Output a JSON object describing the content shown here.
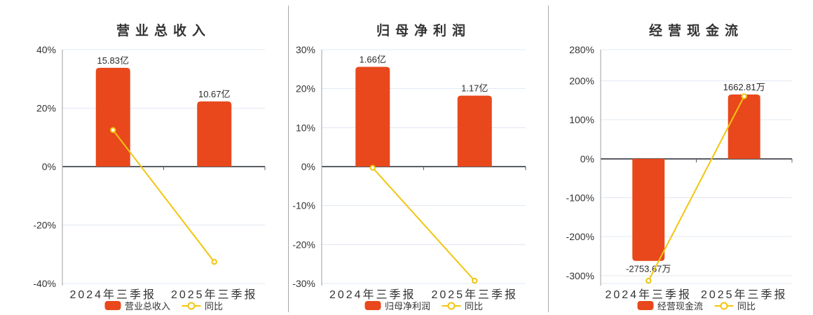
{
  "page": {
    "background": "#ffffff",
    "divider_color": "#a8a8a8"
  },
  "colors": {
    "bar": "#e8481c",
    "line": "#f2c50f",
    "marker_fill": "#ffffff",
    "grid": "#e2e8f2",
    "zero_axis": "#595c63",
    "axis": "#9aa0a6",
    "text": "#333333",
    "value_label": "#2b2b2b"
  },
  "chart_data": [
    {
      "type": "bar+line",
      "title": "营业总收入",
      "categories": [
        "2024年三季报",
        "2025年三季报"
      ],
      "series": [
        {
          "name": "营业总收入",
          "type": "bar",
          "unit": "亿",
          "values": [
            15.83,
            10.67
          ],
          "labels": [
            "15.83亿",
            "10.67亿"
          ],
          "display_axis_pct": [
            33.8,
            22.3
          ]
        },
        {
          "name": "同比",
          "type": "line",
          "values_pct": [
            12.5,
            -32.6
          ]
        }
      ],
      "xlabel": "",
      "ylabel": "",
      "ylim": [
        -40,
        40
      ],
      "y_ticks": [
        {
          "value": 40,
          "label": "40%"
        },
        {
          "value": 20,
          "label": "20%"
        },
        {
          "value": 0,
          "label": "0%"
        },
        {
          "value": -20,
          "label": "-20%"
        },
        {
          "value": -40,
          "label": "-40%"
        }
      ],
      "grid": true,
      "legend_position": "bottom"
    },
    {
      "type": "bar+line",
      "title": "归母净利润",
      "categories": [
        "2024年三季报",
        "2025年三季报"
      ],
      "series": [
        {
          "name": "归母净利润",
          "type": "bar",
          "unit": "亿",
          "values": [
            1.66,
            1.17
          ],
          "labels": [
            "1.66亿",
            "1.17亿"
          ],
          "display_axis_pct": [
            25.6,
            18.2
          ]
        },
        {
          "name": "同比",
          "type": "line",
          "values_pct": [
            -0.3,
            -29.3
          ]
        }
      ],
      "xlabel": "",
      "ylabel": "",
      "ylim": [
        -30,
        30
      ],
      "y_ticks": [
        {
          "value": 30,
          "label": "30%"
        },
        {
          "value": 20,
          "label": "20%"
        },
        {
          "value": 10,
          "label": "10%"
        },
        {
          "value": 0,
          "label": "0%"
        },
        {
          "value": -10,
          "label": "-10%"
        },
        {
          "value": -20,
          "label": "-20%"
        },
        {
          "value": -30,
          "label": "-30%"
        }
      ],
      "grid": true,
      "legend_position": "bottom"
    },
    {
      "type": "bar+line",
      "title": "经营现金流",
      "categories": [
        "2024年三季报",
        "2025年三季报"
      ],
      "series": [
        {
          "name": "经营现金流",
          "type": "bar",
          "unit": "万",
          "values": [
            -2753.67,
            1662.81
          ],
          "labels": [
            "-2753.67万",
            "1662.81万"
          ],
          "display_axis_pct": [
            -262,
            165
          ]
        },
        {
          "name": "同比",
          "type": "line",
          "values_pct": [
            -313,
            160.4
          ]
        }
      ],
      "xlabel": "",
      "ylabel": "",
      "ylim": [
        -320,
        280
      ],
      "y_ticks": [
        {
          "value": 280,
          "label": "280%"
        },
        {
          "value": 200,
          "label": "200%"
        },
        {
          "value": 100,
          "label": "100%"
        },
        {
          "value": 0,
          "label": "0%"
        },
        {
          "value": -100,
          "label": "-100%"
        },
        {
          "value": -200,
          "label": "-200%"
        },
        {
          "value": -300,
          "label": "-300%"
        }
      ],
      "grid": true,
      "legend_position": "bottom"
    }
  ]
}
